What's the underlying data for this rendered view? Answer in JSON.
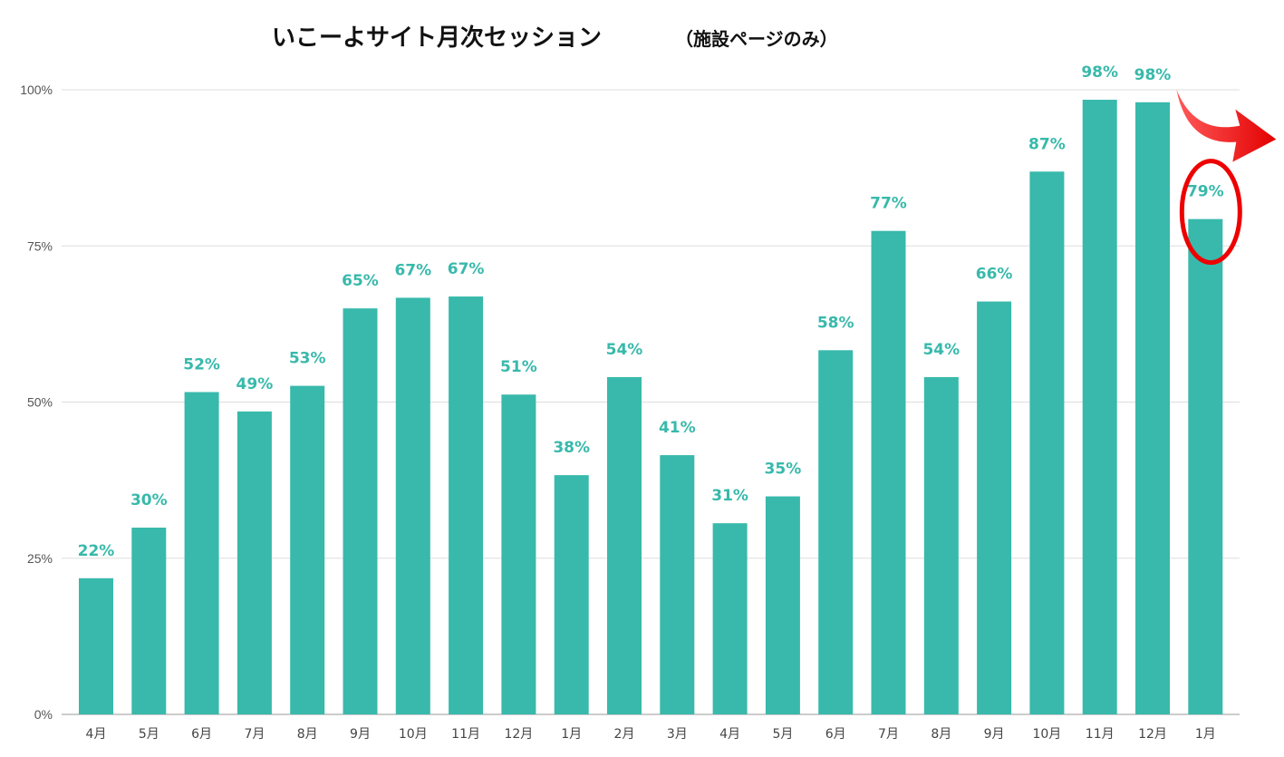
{
  "chart_data": {
    "type": "bar",
    "title": "いこーよサイト月次セッション",
    "subtitle": "（施設ページのみ）",
    "xlabel": "",
    "ylabel": "",
    "ylim": [
      0,
      100
    ],
    "yticks": [
      0,
      25,
      50,
      75,
      100
    ],
    "ytick_labels": [
      "0%",
      "25%",
      "50%",
      "75%",
      "100%"
    ],
    "grid": true,
    "categories": [
      "4月",
      "5月",
      "6月",
      "7月",
      "8月",
      "9月",
      "10月",
      "11月",
      "12月",
      "1月",
      "2月",
      "3月",
      "4月",
      "5月",
      "6月",
      "7月",
      "8月",
      "9月",
      "10月",
      "11月",
      "12月",
      "1月"
    ],
    "values": [
      21.8,
      29.9,
      51.6,
      48.5,
      52.6,
      65.0,
      66.7,
      66.9,
      51.2,
      38.3,
      54.0,
      41.5,
      30.6,
      34.9,
      58.3,
      77.4,
      54.0,
      66.1,
      86.9,
      98.4,
      98.0,
      79.3
    ],
    "data_labels": [
      "22%",
      "30%",
      "52%",
      "49%",
      "53%",
      "65%",
      "67%",
      "67%",
      "51%",
      "38%",
      "54%",
      "41%",
      "31%",
      "35%",
      "58%",
      "77%",
      "54%",
      "66%",
      "87%",
      "98%",
      "98%",
      "79%"
    ],
    "highlight_index": 21,
    "colors": {
      "bar": "#38b9ab",
      "label": "#38b9ab",
      "grid": "#dddddd",
      "annotation": "#ee0000"
    }
  }
}
